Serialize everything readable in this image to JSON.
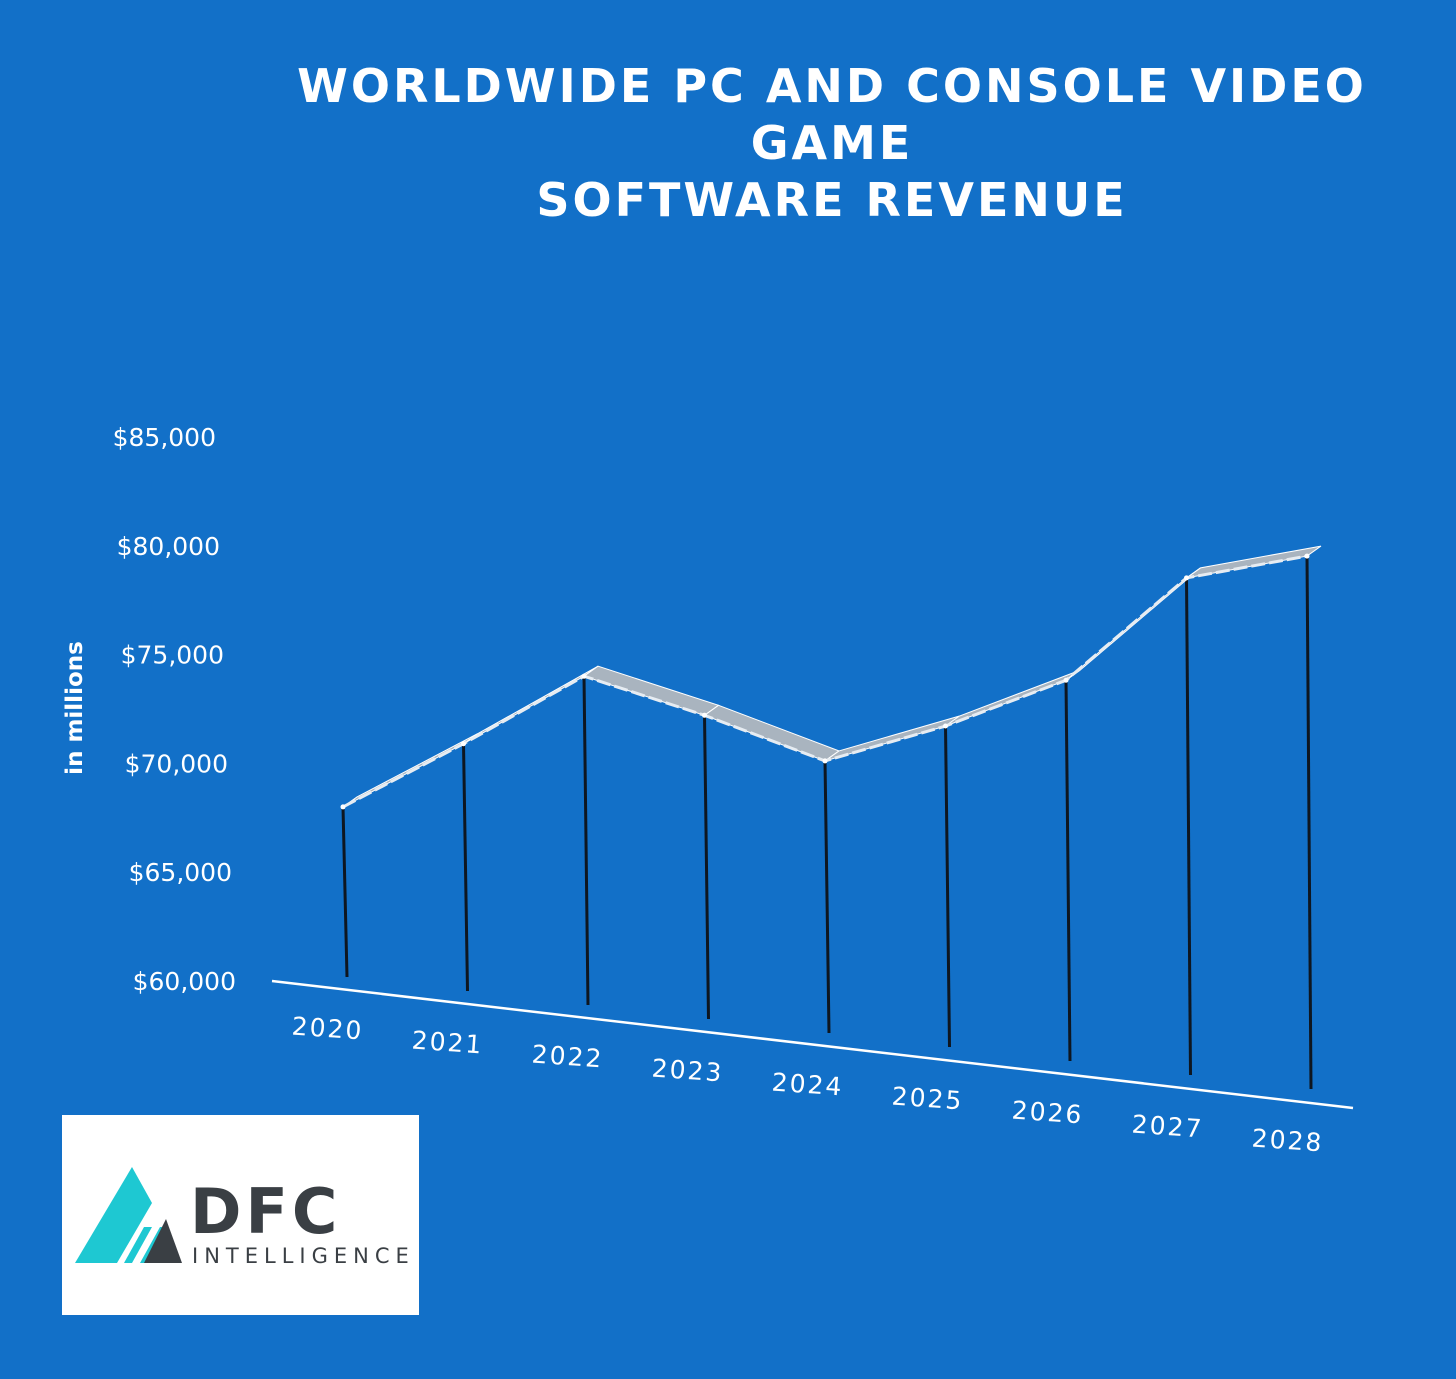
{
  "chart_data": {
    "type": "line",
    "title_lines": [
      "WORLDWIDE PC AND CONSOLE VIDEO",
      "GAME",
      "SOFTWARE REVENUE"
    ],
    "ylabel": "in millions",
    "categories": [
      "2020",
      "2021",
      "2022",
      "2023",
      "2024",
      "2025",
      "2026",
      "2027",
      "2028"
    ],
    "values": [
      68000,
      71000,
      74200,
      72500,
      70500,
      72200,
      74400,
      79200,
      80300
    ],
    "ylim": [
      60000,
      85000
    ],
    "yticks": [
      "$60,000",
      "$65,000",
      "$70,000",
      "$75,000",
      "$80,000",
      "$85,000"
    ],
    "grid": false,
    "legend": "none"
  },
  "colors": {
    "background": "#1270c8",
    "text": "#ffffff",
    "line": "#e6ecf2",
    "ribbon": "#a9b4bf",
    "drop_line": "#0e1620",
    "logo_teal": "#1ec8d2",
    "logo_dark": "#3a3f44"
  },
  "logo": {
    "word": "DFC",
    "sub": "INTELLIGENCE",
    "icon": "dfc-mountain-logo-icon"
  }
}
